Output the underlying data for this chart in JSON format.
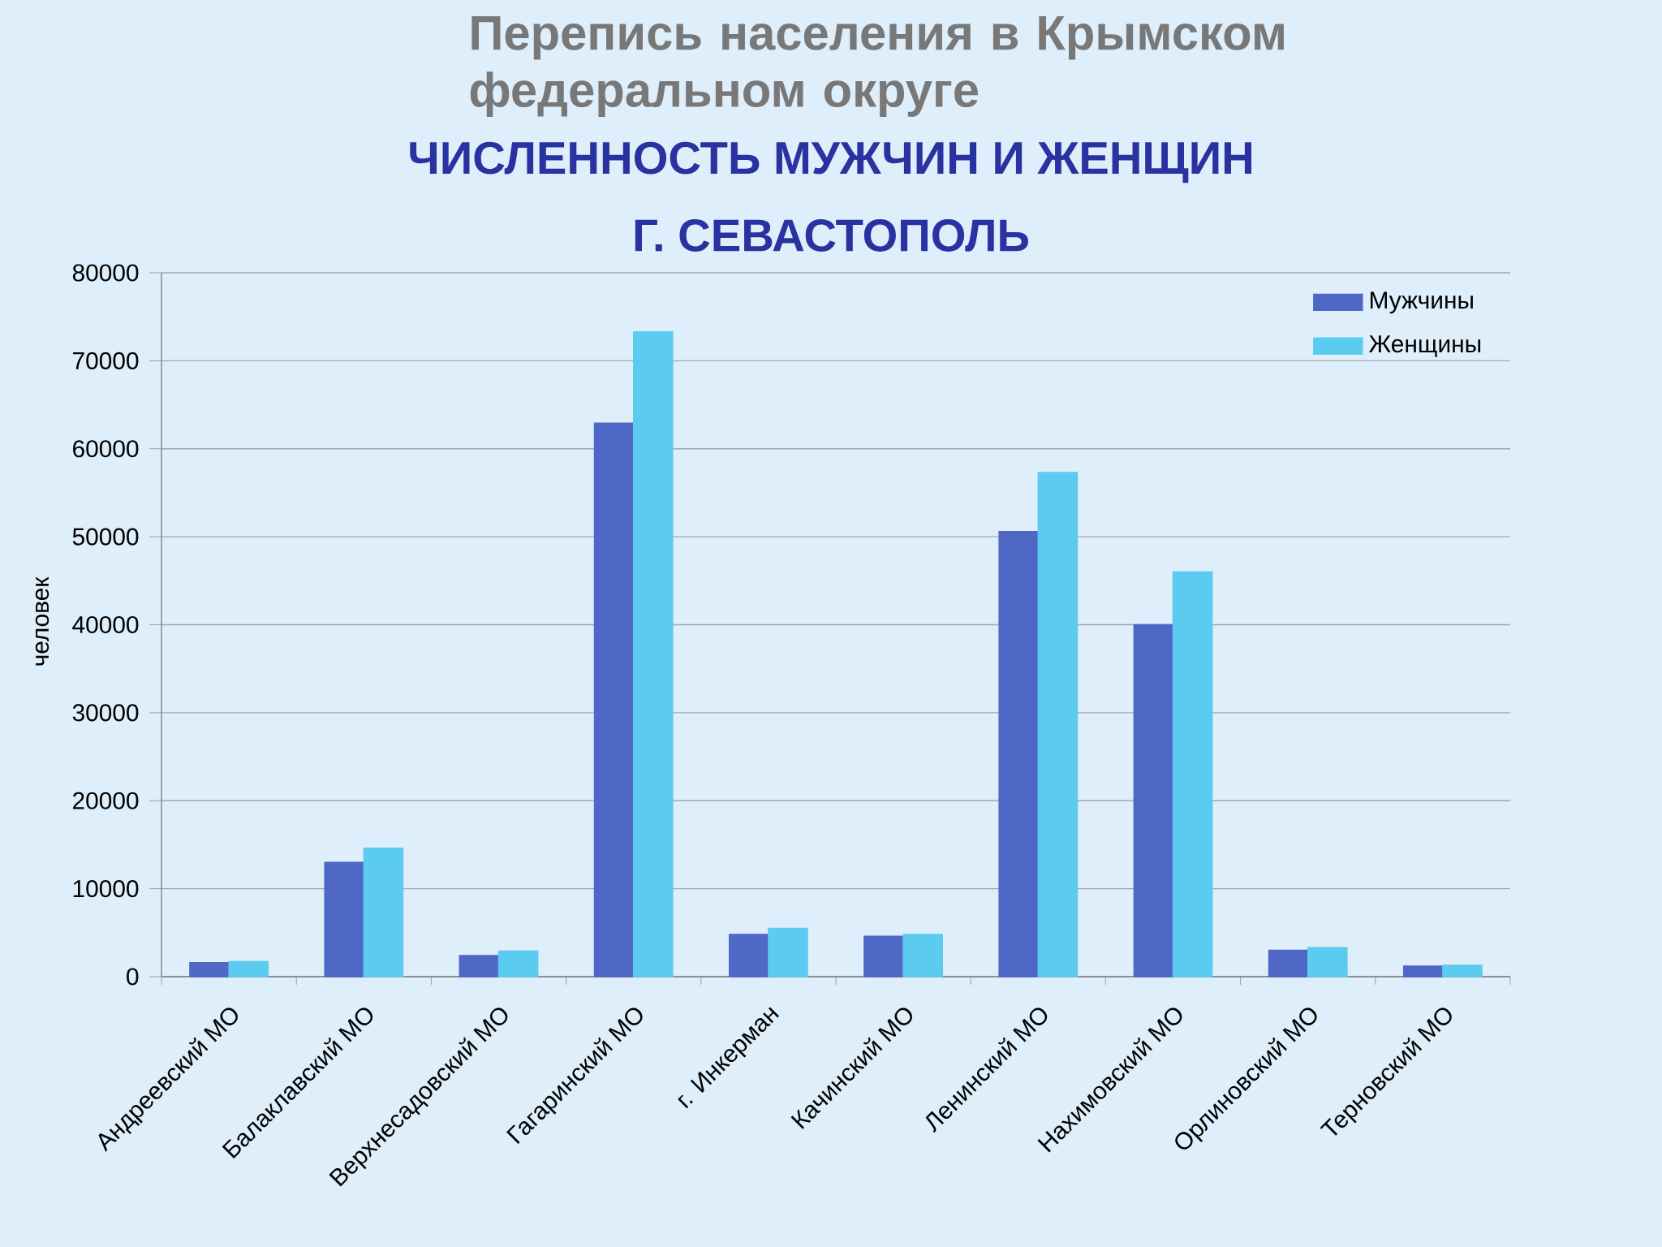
{
  "chart_data": {
    "type": "bar",
    "title": "Перепись населения в Крымском федеральном округе",
    "subtitle": "ЧИСЛЕННОСТЬ МУЖЧИН И ЖЕНЩИН",
    "annotations": [
      "Г. СЕВАСТОПОЛЬ"
    ],
    "ylabel": "человек",
    "categories": [
      "Андреевский МО",
      "Балаклавский МО",
      "Верхнесадовский МО",
      "Гагаринский МО",
      "г. Инкерман",
      "Качинский МО",
      "Ленинский МО",
      "Нахимовский МО",
      "Орлиновский МО",
      "Терновский МО"
    ],
    "series": [
      {
        "name": "Мужчины",
        "color": "#4f67c5",
        "values": [
          1600,
          13000,
          2400,
          62900,
          4800,
          4600,
          50600,
          40000,
          3000,
          1200
        ]
      },
      {
        "name": "Женщины",
        "color": "#5bcbf0",
        "values": [
          1700,
          14600,
          2900,
          73300,
          5500,
          4800,
          57300,
          46000,
          3300,
          1300
        ]
      }
    ],
    "ylim": [
      0,
      80000
    ],
    "yticks": [
      0,
      10000,
      20000,
      30000,
      40000,
      50000,
      60000,
      70000,
      80000
    ],
    "grid": "y",
    "legend": "top right"
  }
}
